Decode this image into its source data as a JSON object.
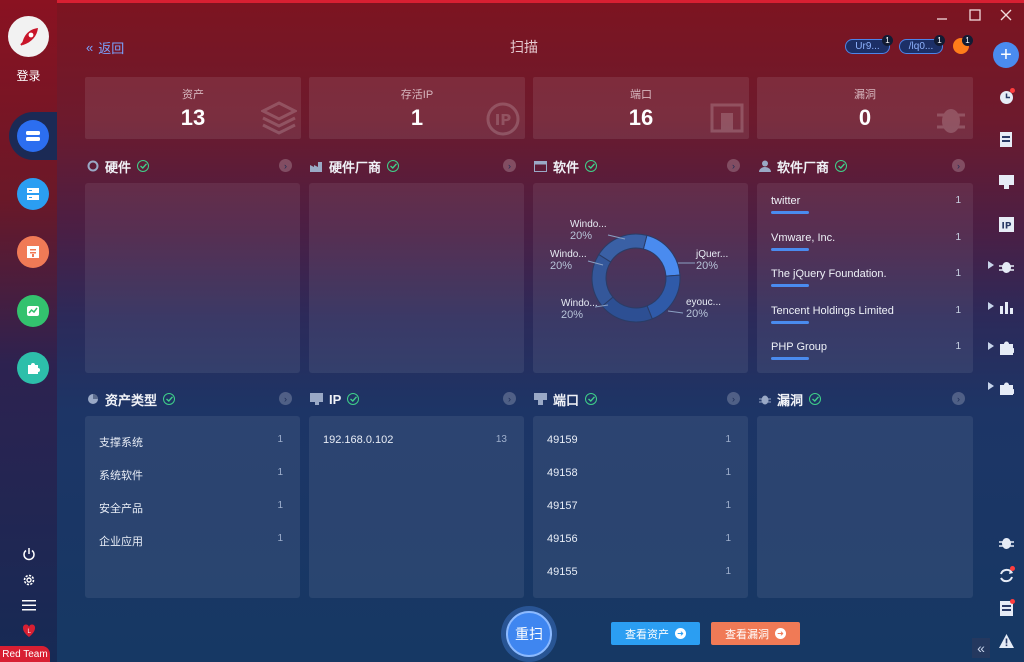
{
  "header": {
    "back_label": "返回",
    "title": "扫描",
    "pills": [
      {
        "label": "Ur9...",
        "badge": "1"
      },
      {
        "label": "/lq0...",
        "badge": "1"
      }
    ],
    "flame_badge": "1"
  },
  "left_sidebar": {
    "login_label": "登录",
    "red_team_label": "Red Team",
    "items": [
      {
        "name": "asset",
        "color": "#2c6ef0"
      },
      {
        "name": "server",
        "color": "#2b9ef2"
      },
      {
        "name": "report",
        "color": "#f07a56"
      },
      {
        "name": "monitor",
        "color": "#33c26e"
      },
      {
        "name": "plugin",
        "color": "#2dbfaa"
      }
    ]
  },
  "stats": [
    {
      "label": "资产",
      "value": "13"
    },
    {
      "label": "存活IP",
      "value": "1"
    },
    {
      "label": "端口",
      "value": "16"
    },
    {
      "label": "漏洞",
      "value": "0"
    }
  ],
  "sections": {
    "hardware": {
      "title": "硬件"
    },
    "hardware_vendor": {
      "title": "硬件厂商"
    },
    "software": {
      "title": "软件",
      "slices": [
        {
          "label": "jQuer...",
          "pct": "20%"
        },
        {
          "label": "eyouc...",
          "pct": "20%"
        },
        {
          "label": "Windo...",
          "pct": "20%"
        },
        {
          "label": "Windo...",
          "pct": "20%"
        },
        {
          "label": "Windo...",
          "pct": "20%"
        }
      ]
    },
    "software_vendor": {
      "title": "软件厂商",
      "rows": [
        {
          "name": "twitter",
          "count": "1"
        },
        {
          "name": "Vmware, Inc.",
          "count": "1"
        },
        {
          "name": "The jQuery Foundation.",
          "count": "1"
        },
        {
          "name": "Tencent Holdings Limited",
          "count": "1"
        },
        {
          "name": "PHP Group",
          "count": "1"
        }
      ]
    },
    "asset_type": {
      "title": "资产类型",
      "rows": [
        {
          "name": "支撑系统",
          "count": "1"
        },
        {
          "name": "系统软件",
          "count": "1"
        },
        {
          "name": "安全产品",
          "count": "1"
        },
        {
          "name": "企业应用",
          "count": "1"
        }
      ]
    },
    "ip": {
      "title": "IP",
      "rows": [
        {
          "name": "192.168.0.102",
          "count": "13"
        }
      ]
    },
    "port": {
      "title": "端口",
      "rows": [
        {
          "name": "49159",
          "count": "1"
        },
        {
          "name": "49158",
          "count": "1"
        },
        {
          "name": "49157",
          "count": "1"
        },
        {
          "name": "49156",
          "count": "1"
        },
        {
          "name": "49155",
          "count": "1"
        }
      ]
    },
    "vuln": {
      "title": "漏洞"
    }
  },
  "actions": {
    "rescan_label": "重扫",
    "view_assets_label": "查看资产",
    "view_vulns_label": "查看漏洞"
  },
  "colors": {
    "accent": "#4a8bef",
    "success": "#3fd08a",
    "warn": "#f07a56",
    "brand_red": "#d81f32",
    "view_assets": "#2b9ef2",
    "view_vulns": "#f07a56"
  }
}
